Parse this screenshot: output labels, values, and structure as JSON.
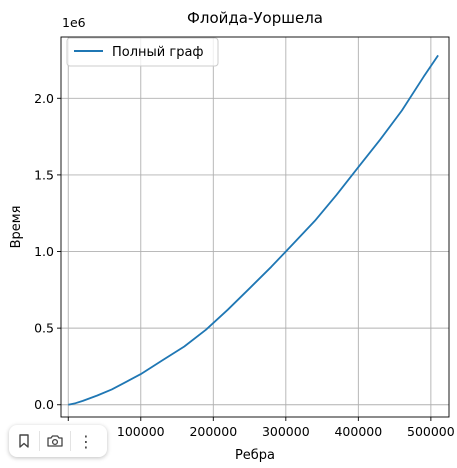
{
  "chart_data": {
    "type": "line",
    "title": "Флойда-Уоршела",
    "xlabel": "Ребра",
    "ylabel": "Время",
    "y_offset_label": "1e6",
    "xlim": [
      -10000,
      525000
    ],
    "ylim": [
      -0.08,
      2.4
    ],
    "y_scale_factor": 1000000,
    "xticks": [
      0,
      100000,
      200000,
      300000,
      400000,
      500000
    ],
    "xtick_labels": [
      "0",
      "100000",
      "200000",
      "300000",
      "400000",
      "500000"
    ],
    "yticks": [
      0.0,
      0.5,
      1.0,
      1.5,
      2.0
    ],
    "ytick_labels": [
      "0.0",
      "0.5",
      "1.0",
      "1.5",
      "2.0"
    ],
    "grid": true,
    "legend_position": "top-left",
    "series": [
      {
        "name": "Полный граф",
        "color": "#1f77b4",
        "x": [
          0,
          10000,
          20000,
          40000,
          60000,
          80000,
          100000,
          130000,
          160000,
          190000,
          220000,
          250000,
          280000,
          310000,
          340000,
          370000,
          400000,
          430000,
          460000,
          490000,
          510000
        ],
        "y": [
          0.0,
          0.01,
          0.025,
          0.06,
          0.1,
          0.15,
          0.2,
          0.29,
          0.38,
          0.49,
          0.62,
          0.76,
          0.9,
          1.05,
          1.2,
          1.37,
          1.55,
          1.73,
          1.92,
          2.14,
          2.28
        ]
      }
    ]
  },
  "toolbar": {
    "icons": [
      "bookmark-icon",
      "screenshot-icon",
      "more-icon"
    ],
    "more_label": "⋮"
  }
}
